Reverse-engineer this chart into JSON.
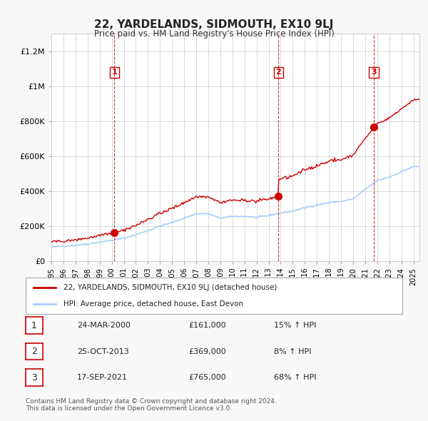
{
  "title": "22, YARDELANDS, SIDMOUTH, EX10 9LJ",
  "subtitle": "Price paid vs. HM Land Registry's House Price Index (HPI)",
  "xlabel": "",
  "ylabel": "",
  "ylim": [
    0,
    1300000
  ],
  "yticks": [
    0,
    200000,
    400000,
    600000,
    800000,
    1000000,
    1200000
  ],
  "ytick_labels": [
    "£0",
    "£200K",
    "£400K",
    "£600K",
    "£800K",
    "£1M",
    "£1.2M"
  ],
  "xlim_start": 1995.0,
  "xlim_end": 2025.5,
  "xtick_years": [
    1995,
    1996,
    1997,
    1998,
    1999,
    2000,
    2001,
    2002,
    2003,
    2004,
    2005,
    2006,
    2007,
    2008,
    2009,
    2010,
    2011,
    2012,
    2013,
    2014,
    2015,
    2016,
    2017,
    2018,
    2019,
    2020,
    2021,
    2022,
    2023,
    2024,
    2025
  ],
  "purchases": [
    {
      "year": 2000.23,
      "price": 161000,
      "label": "1"
    },
    {
      "year": 2013.82,
      "price": 369000,
      "label": "2"
    },
    {
      "year": 2021.72,
      "price": 765000,
      "label": "3"
    }
  ],
  "vline_color": "#cc0000",
  "vline_style": "--",
  "purchase_marker_color": "#cc0000",
  "hpi_line_color": "#aaccff",
  "price_line_color": "#cc0000",
  "legend_entries": [
    {
      "label": "22, YARDELANDS, SIDMOUTH, EX10 9LJ (detached house)",
      "color": "#cc0000"
    },
    {
      "label": "HPI: Average price, detached house, East Devon",
      "color": "#aaccff"
    }
  ],
  "table_rows": [
    {
      "num": "1",
      "date": "24-MAR-2000",
      "price": "£161,000",
      "hpi": "15% ↑ HPI"
    },
    {
      "num": "2",
      "date": "25-OCT-2013",
      "price": "£369,000",
      "hpi": "8% ↑ HPI"
    },
    {
      "num": "3",
      "date": "17-SEP-2021",
      "price": "£765,000",
      "hpi": "68% ↑ HPI"
    }
  ],
  "footnote": "Contains HM Land Registry data © Crown copyright and database right 2024.\nThis data is licensed under the Open Government Licence v3.0.",
  "background_color": "#f8f8f8",
  "plot_bg_color": "#ffffff",
  "grid_color": "#cccccc"
}
